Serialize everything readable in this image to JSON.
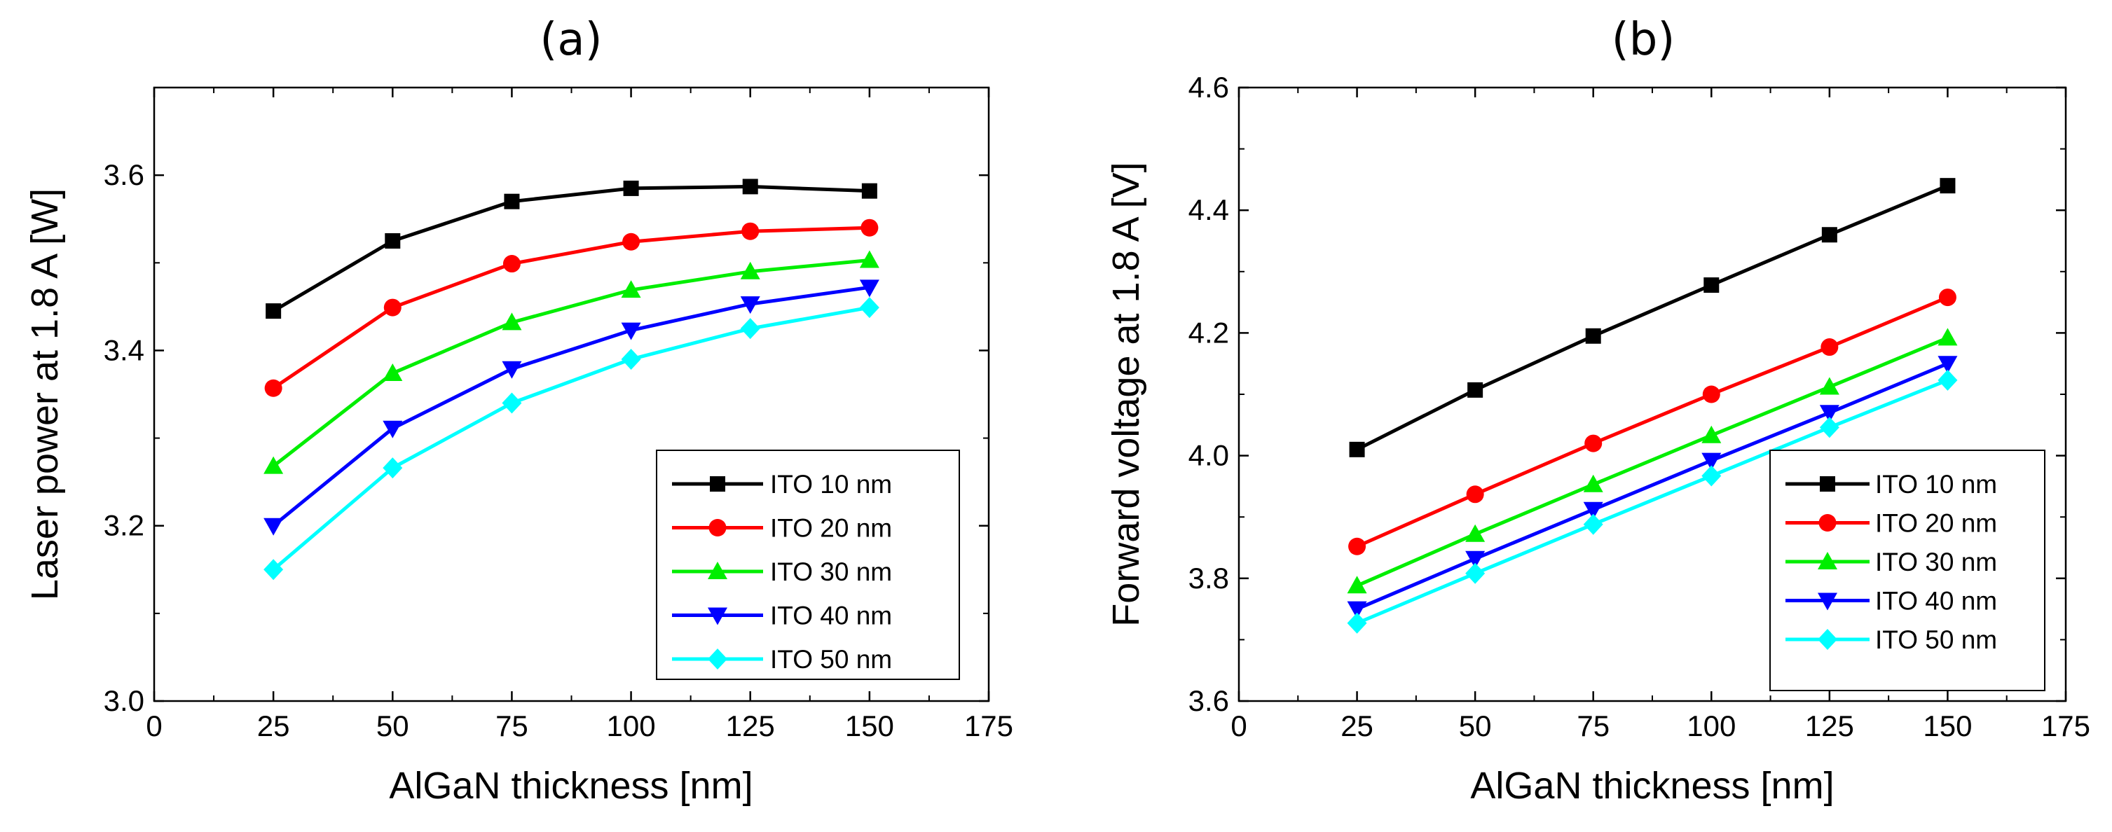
{
  "chart_data": [
    {
      "type": "line",
      "panel_label": "(a)",
      "xlabel": "AlGaN thickness [nm]",
      "ylabel": "Laser power at 1.8 A [W]",
      "xlim": [
        0,
        175
      ],
      "ylim": [
        3.0,
        3.7
      ],
      "x_ticks": [
        "0",
        "25",
        "50",
        "75",
        "100",
        "125",
        "150",
        "175"
      ],
      "y_ticks": [
        "3.0",
        "3.2",
        "3.4",
        "3.6"
      ],
      "x_tick_values": [
        0,
        25,
        50,
        75,
        100,
        125,
        150,
        175
      ],
      "y_tick_values": [
        3.0,
        3.2,
        3.4,
        3.6
      ],
      "legend_position": "lower-right",
      "x": [
        25,
        50,
        75,
        100,
        125,
        150
      ],
      "series": [
        {
          "name": "ITO 10 nm",
          "color": "#000000",
          "marker": "square",
          "values": [
            3.445,
            3.525,
            3.57,
            3.585,
            3.587,
            3.582
          ]
        },
        {
          "name": "ITO 20 nm",
          "color": "#ff0000",
          "marker": "circle",
          "values": [
            3.357,
            3.449,
            3.499,
            3.524,
            3.536,
            3.54
          ]
        },
        {
          "name": "ITO 30 nm",
          "color": "#00ee00",
          "marker": "triangle-up",
          "values": [
            3.268,
            3.374,
            3.432,
            3.469,
            3.49,
            3.503
          ]
        },
        {
          "name": "ITO 40 nm",
          "color": "#0000ff",
          "marker": "triangle-down",
          "values": [
            3.2,
            3.311,
            3.379,
            3.423,
            3.453,
            3.472
          ]
        },
        {
          "name": "ITO 50 nm",
          "color": "#00ffff",
          "marker": "diamond",
          "values": [
            3.15,
            3.266,
            3.34,
            3.39,
            3.425,
            3.449
          ]
        }
      ]
    },
    {
      "type": "line",
      "panel_label": "(b)",
      "xlabel": "AlGaN thickness [nm]",
      "ylabel": "Forward voltage at 1.8 A [V]",
      "xlim": [
        0,
        175
      ],
      "ylim": [
        3.6,
        4.6
      ],
      "x_ticks": [
        "0",
        "25",
        "50",
        "75",
        "100",
        "125",
        "150",
        "175"
      ],
      "y_ticks": [
        "3.6",
        "3.8",
        "4.0",
        "4.2",
        "4.4",
        "4.6"
      ],
      "x_tick_values": [
        0,
        25,
        50,
        75,
        100,
        125,
        150,
        175
      ],
      "y_tick_values": [
        3.6,
        3.8,
        4.0,
        4.2,
        4.4,
        4.6
      ],
      "legend_position": "lower-right",
      "x": [
        25,
        50,
        75,
        100,
        125,
        150
      ],
      "series": [
        {
          "name": "ITO 10 nm",
          "color": "#000000",
          "marker": "square",
          "values": [
            4.01,
            4.107,
            4.195,
            4.278,
            4.36,
            4.44
          ]
        },
        {
          "name": "ITO 20 nm",
          "color": "#ff0000",
          "marker": "circle",
          "values": [
            3.852,
            3.937,
            4.02,
            4.1,
            4.177,
            4.258
          ]
        },
        {
          "name": "ITO 30 nm",
          "color": "#00ee00",
          "marker": "triangle-up",
          "values": [
            3.788,
            3.872,
            3.953,
            4.033,
            4.112,
            4.192
          ]
        },
        {
          "name": "ITO 40 nm",
          "color": "#0000ff",
          "marker": "triangle-down",
          "values": [
            3.75,
            3.832,
            3.912,
            3.992,
            4.07,
            4.15
          ]
        },
        {
          "name": "ITO 50 nm",
          "color": "#00ffff",
          "marker": "diamond",
          "values": [
            3.727,
            3.808,
            3.888,
            3.967,
            4.046,
            4.123
          ]
        }
      ]
    }
  ]
}
